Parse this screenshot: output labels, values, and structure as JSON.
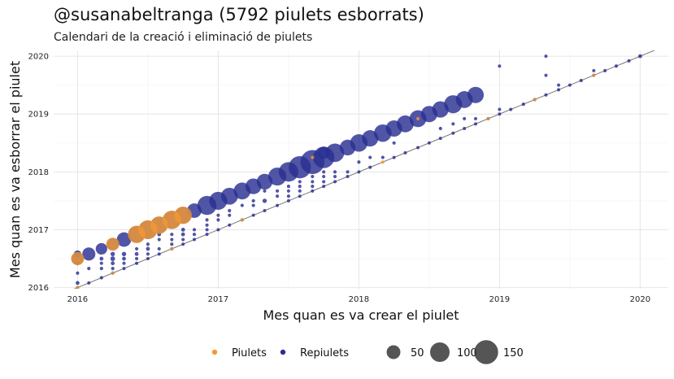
{
  "chart_data": {
    "type": "scatter",
    "title": "@susanabeltranga (5792 piulets esborrats)",
    "subtitle": "Calendari de la creació i eliminació de piulets",
    "xlabel": "Mes quan es va crear el piulet",
    "ylabel": "Mes quan es va esborrar el piulet",
    "x_ticks": [
      "2016",
      "2017",
      "2018",
      "2019",
      "2020"
    ],
    "y_ticks": [
      "2016",
      "2017",
      "2018",
      "2019",
      "2020"
    ],
    "xlim": [
      2015.83,
      2020.2
    ],
    "ylim": [
      2015.98,
      2020.1
    ],
    "grid": true,
    "reference_line": "y = x",
    "legend_placement": "bottom",
    "colors": {
      "Piulets": "#f39a33",
      "Repiulets": "#2b2f91",
      "reference_line": "#777777"
    },
    "legend": {
      "color": [
        {
          "name": "Piulets",
          "color": "#f39a33"
        },
        {
          "name": "Repiulets",
          "color": "#2b2f91"
        }
      ],
      "size": [
        {
          "label": "50",
          "value": 50
        },
        {
          "label": "100",
          "value": 100
        },
        {
          "label": "150",
          "value": 150
        }
      ]
    },
    "series": [
      {
        "name": "Repiulets",
        "color": "#2b2f91",
        "points": [
          {
            "x": 2016.0,
            "y": 2016.0,
            "n": 2
          },
          {
            "x": 2016.0,
            "y": 2016.08,
            "n": 4
          },
          {
            "x": 2016.0,
            "y": 2016.25,
            "n": 3
          },
          {
            "x": 2016.0,
            "y": 2016.42,
            "n": 4
          },
          {
            "x": 2016.0,
            "y": 2016.5,
            "n": 40
          },
          {
            "x": 2016.0,
            "y": 2016.58,
            "n": 14
          },
          {
            "x": 2016.08,
            "y": 2016.08,
            "n": 2
          },
          {
            "x": 2016.08,
            "y": 2016.33,
            "n": 3
          },
          {
            "x": 2016.08,
            "y": 2016.58,
            "n": 45
          },
          {
            "x": 2016.17,
            "y": 2016.17,
            "n": 3
          },
          {
            "x": 2016.17,
            "y": 2016.33,
            "n": 3
          },
          {
            "x": 2016.17,
            "y": 2016.42,
            "n": 3
          },
          {
            "x": 2016.17,
            "y": 2016.5,
            "n": 4
          },
          {
            "x": 2016.17,
            "y": 2016.67,
            "n": 35
          },
          {
            "x": 2016.25,
            "y": 2016.25,
            "n": 2
          },
          {
            "x": 2016.25,
            "y": 2016.33,
            "n": 3
          },
          {
            "x": 2016.25,
            "y": 2016.42,
            "n": 4
          },
          {
            "x": 2016.25,
            "y": 2016.5,
            "n": 6
          },
          {
            "x": 2016.25,
            "y": 2016.58,
            "n": 5
          },
          {
            "x": 2016.25,
            "y": 2016.75,
            "n": 40
          },
          {
            "x": 2016.33,
            "y": 2016.33,
            "n": 2
          },
          {
            "x": 2016.33,
            "y": 2016.42,
            "n": 3
          },
          {
            "x": 2016.33,
            "y": 2016.5,
            "n": 4
          },
          {
            "x": 2016.33,
            "y": 2016.58,
            "n": 5
          },
          {
            "x": 2016.33,
            "y": 2016.83,
            "n": 55
          },
          {
            "x": 2016.42,
            "y": 2016.42,
            "n": 2
          },
          {
            "x": 2016.42,
            "y": 2016.5,
            "n": 3
          },
          {
            "x": 2016.42,
            "y": 2016.58,
            "n": 4
          },
          {
            "x": 2016.42,
            "y": 2016.67,
            "n": 3
          },
          {
            "x": 2016.42,
            "y": 2016.92,
            "n": 75
          },
          {
            "x": 2016.5,
            "y": 2016.5,
            "n": 2
          },
          {
            "x": 2016.5,
            "y": 2016.58,
            "n": 3
          },
          {
            "x": 2016.5,
            "y": 2016.67,
            "n": 4
          },
          {
            "x": 2016.5,
            "y": 2016.75,
            "n": 3
          },
          {
            "x": 2016.5,
            "y": 2017.0,
            "n": 90
          },
          {
            "x": 2016.58,
            "y": 2016.58,
            "n": 2
          },
          {
            "x": 2016.58,
            "y": 2016.67,
            "n": 3
          },
          {
            "x": 2016.58,
            "y": 2016.83,
            "n": 3
          },
          {
            "x": 2016.58,
            "y": 2016.92,
            "n": 4
          },
          {
            "x": 2016.58,
            "y": 2017.08,
            "n": 75
          },
          {
            "x": 2016.67,
            "y": 2016.67,
            "n": 2
          },
          {
            "x": 2016.67,
            "y": 2016.75,
            "n": 3
          },
          {
            "x": 2016.67,
            "y": 2016.83,
            "n": 3
          },
          {
            "x": 2016.67,
            "y": 2016.92,
            "n": 3
          },
          {
            "x": 2016.67,
            "y": 2017.17,
            "n": 85
          },
          {
            "x": 2016.75,
            "y": 2016.75,
            "n": 2
          },
          {
            "x": 2016.75,
            "y": 2016.83,
            "n": 3
          },
          {
            "x": 2016.75,
            "y": 2016.92,
            "n": 4
          },
          {
            "x": 2016.75,
            "y": 2017.0,
            "n": 4
          },
          {
            "x": 2016.75,
            "y": 2017.25,
            "n": 75
          },
          {
            "x": 2016.83,
            "y": 2016.83,
            "n": 2
          },
          {
            "x": 2016.83,
            "y": 2016.92,
            "n": 3
          },
          {
            "x": 2016.83,
            "y": 2017.0,
            "n": 3
          },
          {
            "x": 2016.83,
            "y": 2017.33,
            "n": 55
          },
          {
            "x": 2016.92,
            "y": 2016.92,
            "n": 2
          },
          {
            "x": 2016.92,
            "y": 2017.0,
            "n": 3
          },
          {
            "x": 2016.92,
            "y": 2017.08,
            "n": 3
          },
          {
            "x": 2016.92,
            "y": 2017.17,
            "n": 3
          },
          {
            "x": 2016.92,
            "y": 2017.42,
            "n": 95
          },
          {
            "x": 2017.0,
            "y": 2017.0,
            "n": 2
          },
          {
            "x": 2017.0,
            "y": 2017.17,
            "n": 3
          },
          {
            "x": 2017.0,
            "y": 2017.25,
            "n": 3
          },
          {
            "x": 2017.0,
            "y": 2017.5,
            "n": 85
          },
          {
            "x": 2017.08,
            "y": 2017.08,
            "n": 2
          },
          {
            "x": 2017.08,
            "y": 2017.25,
            "n": 3
          },
          {
            "x": 2017.08,
            "y": 2017.33,
            "n": 3
          },
          {
            "x": 2017.08,
            "y": 2017.58,
            "n": 75
          },
          {
            "x": 2017.17,
            "y": 2017.17,
            "n": 2
          },
          {
            "x": 2017.17,
            "y": 2017.42,
            "n": 3
          },
          {
            "x": 2017.17,
            "y": 2017.67,
            "n": 75
          },
          {
            "x": 2017.25,
            "y": 2017.25,
            "n": 2
          },
          {
            "x": 2017.25,
            "y": 2017.42,
            "n": 3
          },
          {
            "x": 2017.25,
            "y": 2017.5,
            "n": 3
          },
          {
            "x": 2017.25,
            "y": 2017.75,
            "n": 65
          },
          {
            "x": 2017.33,
            "y": 2017.33,
            "n": 2
          },
          {
            "x": 2017.33,
            "y": 2017.5,
            "n": 5
          },
          {
            "x": 2017.33,
            "y": 2017.67,
            "n": 3
          },
          {
            "x": 2017.33,
            "y": 2017.83,
            "n": 65
          },
          {
            "x": 2017.42,
            "y": 2017.42,
            "n": 2
          },
          {
            "x": 2017.42,
            "y": 2017.58,
            "n": 3
          },
          {
            "x": 2017.42,
            "y": 2017.67,
            "n": 3
          },
          {
            "x": 2017.42,
            "y": 2017.92,
            "n": 85
          },
          {
            "x": 2017.5,
            "y": 2017.5,
            "n": 2
          },
          {
            "x": 2017.5,
            "y": 2017.58,
            "n": 3
          },
          {
            "x": 2017.5,
            "y": 2017.67,
            "n": 3
          },
          {
            "x": 2017.5,
            "y": 2017.75,
            "n": 3
          },
          {
            "x": 2017.5,
            "y": 2018.0,
            "n": 100
          },
          {
            "x": 2017.58,
            "y": 2017.58,
            "n": 2
          },
          {
            "x": 2017.58,
            "y": 2017.67,
            "n": 3
          },
          {
            "x": 2017.58,
            "y": 2017.75,
            "n": 3
          },
          {
            "x": 2017.58,
            "y": 2017.83,
            "n": 3
          },
          {
            "x": 2017.58,
            "y": 2018.08,
            "n": 130
          },
          {
            "x": 2017.67,
            "y": 2017.67,
            "n": 2
          },
          {
            "x": 2017.67,
            "y": 2017.75,
            "n": 3
          },
          {
            "x": 2017.67,
            "y": 2017.83,
            "n": 3
          },
          {
            "x": 2017.67,
            "y": 2017.92,
            "n": 3
          },
          {
            "x": 2017.67,
            "y": 2018.17,
            "n": 150
          },
          {
            "x": 2017.75,
            "y": 2017.75,
            "n": 2
          },
          {
            "x": 2017.75,
            "y": 2017.83,
            "n": 3
          },
          {
            "x": 2017.75,
            "y": 2017.92,
            "n": 3
          },
          {
            "x": 2017.75,
            "y": 2018.0,
            "n": 3
          },
          {
            "x": 2017.75,
            "y": 2018.25,
            "n": 120
          },
          {
            "x": 2017.75,
            "y": 2018.33,
            "n": 40
          },
          {
            "x": 2017.83,
            "y": 2017.83,
            "n": 2
          },
          {
            "x": 2017.83,
            "y": 2017.92,
            "n": 3
          },
          {
            "x": 2017.83,
            "y": 2018.0,
            "n": 3
          },
          {
            "x": 2017.83,
            "y": 2018.33,
            "n": 90
          },
          {
            "x": 2017.92,
            "y": 2017.92,
            "n": 2
          },
          {
            "x": 2017.92,
            "y": 2018.0,
            "n": 3
          },
          {
            "x": 2017.92,
            "y": 2018.42,
            "n": 65
          },
          {
            "x": 2018.0,
            "y": 2018.0,
            "n": 2
          },
          {
            "x": 2018.0,
            "y": 2018.17,
            "n": 3
          },
          {
            "x": 2018.0,
            "y": 2018.5,
            "n": 80
          },
          {
            "x": 2018.08,
            "y": 2018.08,
            "n": 3
          },
          {
            "x": 2018.08,
            "y": 2018.25,
            "n": 3
          },
          {
            "x": 2018.08,
            "y": 2018.58,
            "n": 70
          },
          {
            "x": 2018.17,
            "y": 2018.25,
            "n": 3
          },
          {
            "x": 2018.17,
            "y": 2018.67,
            "n": 80
          },
          {
            "x": 2018.25,
            "y": 2018.25,
            "n": 2
          },
          {
            "x": 2018.25,
            "y": 2018.5,
            "n": 3
          },
          {
            "x": 2018.25,
            "y": 2018.75,
            "n": 70
          },
          {
            "x": 2018.33,
            "y": 2018.33,
            "n": 2
          },
          {
            "x": 2018.33,
            "y": 2018.83,
            "n": 75
          },
          {
            "x": 2018.42,
            "y": 2018.42,
            "n": 2
          },
          {
            "x": 2018.42,
            "y": 2018.92,
            "n": 75
          },
          {
            "x": 2018.5,
            "y": 2018.5,
            "n": 2
          },
          {
            "x": 2018.5,
            "y": 2019.0,
            "n": 70
          },
          {
            "x": 2018.58,
            "y": 2018.58,
            "n": 2
          },
          {
            "x": 2018.58,
            "y": 2018.75,
            "n": 3
          },
          {
            "x": 2018.58,
            "y": 2019.08,
            "n": 70
          },
          {
            "x": 2018.67,
            "y": 2018.67,
            "n": 2
          },
          {
            "x": 2018.67,
            "y": 2018.83,
            "n": 3
          },
          {
            "x": 2018.67,
            "y": 2019.17,
            "n": 85
          },
          {
            "x": 2018.75,
            "y": 2018.75,
            "n": 2
          },
          {
            "x": 2018.75,
            "y": 2018.92,
            "n": 3
          },
          {
            "x": 2018.75,
            "y": 2019.25,
            "n": 75
          },
          {
            "x": 2018.83,
            "y": 2018.83,
            "n": 2
          },
          {
            "x": 2018.83,
            "y": 2018.92,
            "n": 3
          },
          {
            "x": 2018.83,
            "y": 2019.33,
            "n": 70
          },
          {
            "x": 2018.92,
            "y": 2018.92,
            "n": 2
          },
          {
            "x": 2019.0,
            "y": 2019.0,
            "n": 2
          },
          {
            "x": 2019.0,
            "y": 2019.08,
            "n": 2
          },
          {
            "x": 2019.0,
            "y": 2019.83,
            "n": 2
          },
          {
            "x": 2019.08,
            "y": 2019.08,
            "n": 3
          },
          {
            "x": 2019.17,
            "y": 2019.17,
            "n": 3
          },
          {
            "x": 2019.25,
            "y": 2019.25,
            "n": 3
          },
          {
            "x": 2019.33,
            "y": 2019.33,
            "n": 2
          },
          {
            "x": 2019.33,
            "y": 2019.67,
            "n": 2
          },
          {
            "x": 2019.33,
            "y": 2020.0,
            "n": 2
          },
          {
            "x": 2019.42,
            "y": 2019.42,
            "n": 2
          },
          {
            "x": 2019.42,
            "y": 2019.5,
            "n": 2
          },
          {
            "x": 2019.5,
            "y": 2019.5,
            "n": 2
          },
          {
            "x": 2019.58,
            "y": 2019.58,
            "n": 3
          },
          {
            "x": 2019.67,
            "y": 2019.67,
            "n": 3
          },
          {
            "x": 2019.67,
            "y": 2019.75,
            "n": 2
          },
          {
            "x": 2019.75,
            "y": 2019.75,
            "n": 3
          },
          {
            "x": 2019.83,
            "y": 2019.83,
            "n": 3
          },
          {
            "x": 2019.92,
            "y": 2019.92,
            "n": 3
          },
          {
            "x": 2020.0,
            "y": 2020.0,
            "n": 4
          }
        ]
      },
      {
        "name": "Piulets",
        "color": "#f39a33",
        "points": [
          {
            "x": 2016.0,
            "y": 2016.0,
            "n": 3
          },
          {
            "x": 2016.0,
            "y": 2016.5,
            "n": 45
          },
          {
            "x": 2016.25,
            "y": 2016.25,
            "n": 3
          },
          {
            "x": 2016.25,
            "y": 2016.75,
            "n": 45
          },
          {
            "x": 2016.42,
            "y": 2016.92,
            "n": 80
          },
          {
            "x": 2016.5,
            "y": 2017.0,
            "n": 95
          },
          {
            "x": 2016.58,
            "y": 2017.08,
            "n": 80
          },
          {
            "x": 2016.67,
            "y": 2016.67,
            "n": 3
          },
          {
            "x": 2016.67,
            "y": 2017.17,
            "n": 90
          },
          {
            "x": 2016.75,
            "y": 2017.25,
            "n": 80
          },
          {
            "x": 2017.17,
            "y": 2017.17,
            "n": 2
          },
          {
            "x": 2017.67,
            "y": 2018.25,
            "n": 3
          },
          {
            "x": 2018.17,
            "y": 2018.17,
            "n": 3
          },
          {
            "x": 2018.42,
            "y": 2018.92,
            "n": 3
          },
          {
            "x": 2018.92,
            "y": 2018.92,
            "n": 3
          },
          {
            "x": 2019.25,
            "y": 2019.25,
            "n": 3
          },
          {
            "x": 2019.67,
            "y": 2019.67,
            "n": 3
          }
        ]
      }
    ]
  }
}
